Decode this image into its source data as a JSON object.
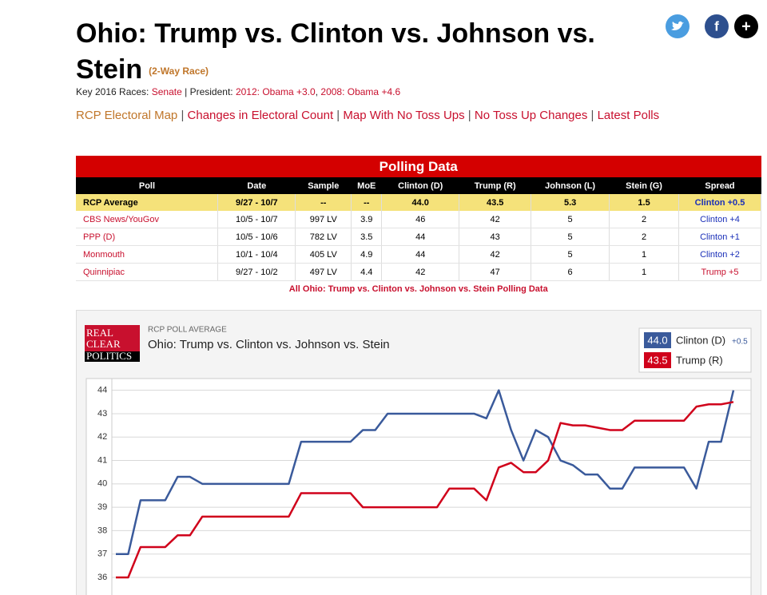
{
  "header": {
    "title": "Ohio: Trump vs. Clinton vs. Johnson vs. Stein",
    "race_type": "(2-Way Race)",
    "key_races": {
      "label": "Key 2016 Races:",
      "senate": "Senate",
      "president_label": "| President:",
      "pres_2012": "2012: Obama +3.0",
      "separator": ",",
      "pres_2008": "2008: Obama +4.6"
    },
    "links": [
      "RCP Electoral Map",
      "Changes in Electoral Count",
      "Map With No Toss Ups",
      "No Toss Up Changes",
      "Latest Polls"
    ],
    "social": [
      "f",
      "+"
    ]
  },
  "table": {
    "caption": "Polling Data",
    "columns": [
      "Poll",
      "Date",
      "Sample",
      "MoE",
      "Clinton (D)",
      "Trump (R)",
      "Johnson (L)",
      "Stein (G)",
      "Spread"
    ],
    "rows": [
      [
        "RCP Average",
        "9/27 - 10/7",
        "--",
        "--",
        "44.0",
        "43.5",
        "5.3",
        "1.5",
        "Clinton +0.5"
      ],
      [
        "CBS News/YouGov",
        "10/5 - 10/7",
        "997 LV",
        "3.9",
        "46",
        "42",
        "5",
        "2",
        "Clinton +4"
      ],
      [
        "PPP (D)",
        "10/5 - 10/6",
        "782 LV",
        "3.5",
        "44",
        "43",
        "5",
        "2",
        "Clinton +1"
      ],
      [
        "Monmouth",
        "10/1 - 10/4",
        "405 LV",
        "4.9",
        "44",
        "42",
        "5",
        "1",
        "Clinton +2"
      ],
      [
        "Quinnipiac",
        "9/27 - 10/2",
        "497 LV",
        "4.4",
        "42",
        "47",
        "6",
        "1",
        "Trump +5"
      ]
    ],
    "footer": "All Ohio: Trump vs. Clinton vs. Johnson vs. Stein Polling Data"
  },
  "chart_data": {
    "type": "line",
    "supertitle": "RCP POLL AVERAGE",
    "title": "Ohio: Trump vs. Clinton vs. Johnson vs. Stein",
    "logo": [
      "REAL",
      "CLEAR",
      "POLITICS"
    ],
    "categories": [
      null,
      null,
      null,
      null,
      null,
      null,
      null,
      null,
      null,
      null,
      null,
      null,
      null,
      null,
      null,
      null,
      null,
      null,
      null,
      null,
      null,
      null,
      null,
      null,
      null,
      null,
      null,
      null,
      null,
      null,
      null,
      null,
      null,
      null,
      null,
      null,
      null,
      null,
      null,
      null,
      null,
      null,
      null,
      null,
      null,
      null,
      null,
      null,
      null,
      null,
      null
    ],
    "series": [
      {
        "name": "Clinton (D)",
        "color": "#3a5a9b",
        "latest": "44.0",
        "spread": "+0.5",
        "values": [
          37.0,
          37.0,
          39.3,
          39.3,
          39.3,
          40.3,
          40.3,
          40.0,
          40.0,
          40.0,
          40.0,
          40.0,
          40.0,
          40.0,
          40.0,
          41.8,
          41.8,
          41.8,
          41.8,
          41.8,
          42.3,
          42.3,
          43.0,
          43.0,
          43.0,
          43.0,
          43.0,
          43.0,
          43.0,
          43.0,
          42.8,
          44.0,
          42.3,
          41.0,
          42.3,
          42.0,
          41.0,
          40.8,
          40.4,
          40.4,
          39.8,
          39.8,
          40.7,
          40.7,
          40.7,
          40.7,
          40.7,
          39.8,
          41.8,
          41.8,
          44.0
        ]
      },
      {
        "name": "Trump (R)",
        "color": "#d0021b",
        "latest": "43.5",
        "values": [
          36.0,
          36.0,
          37.3,
          37.3,
          37.3,
          37.8,
          37.8,
          38.6,
          38.6,
          38.6,
          38.6,
          38.6,
          38.6,
          38.6,
          38.6,
          39.6,
          39.6,
          39.6,
          39.6,
          39.6,
          39.0,
          39.0,
          39.0,
          39.0,
          39.0,
          39.0,
          39.0,
          39.8,
          39.8,
          39.8,
          39.3,
          40.7,
          40.9,
          40.5,
          40.5,
          41.0,
          42.6,
          42.5,
          42.5,
          42.4,
          42.3,
          42.3,
          42.7,
          42.7,
          42.7,
          42.7,
          42.7,
          43.3,
          43.4,
          43.4,
          43.5
        ]
      }
    ],
    "ylim": [
      35.25,
      44.5
    ],
    "yticks": [
      36,
      37,
      38,
      39,
      40,
      41,
      42,
      43,
      44
    ],
    "grid": true
  }
}
